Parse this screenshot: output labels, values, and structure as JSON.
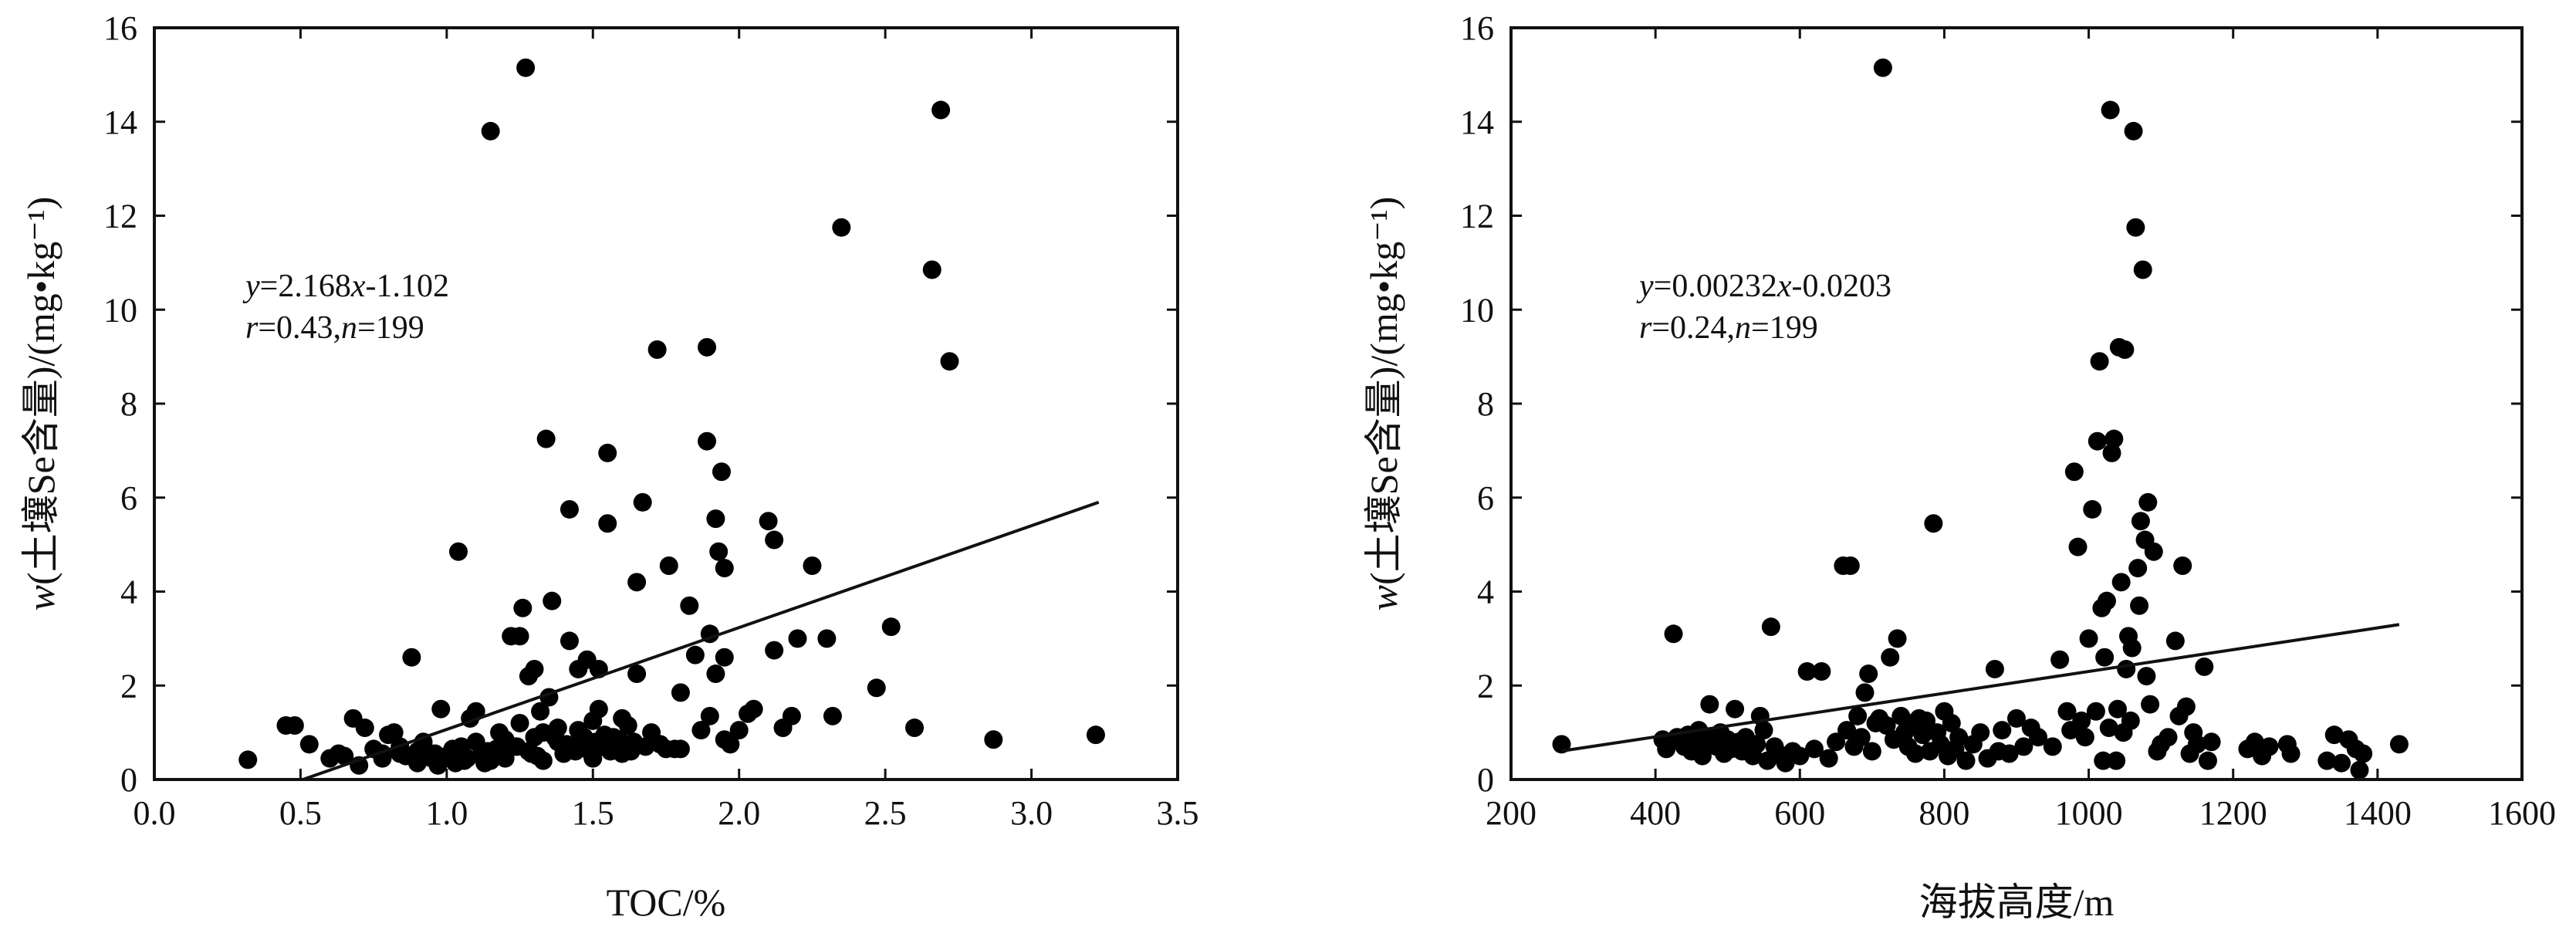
{
  "chart_data": [
    {
      "type": "scatter",
      "xlabel": "TOC/%",
      "ylabel": "w(土壤Se含量)/(mg•kg⁻¹)",
      "xlim": [
        0.0,
        3.5
      ],
      "ylim": [
        0,
        16
      ],
      "xticks": [
        "0.0",
        "0.5",
        "1.0",
        "1.5",
        "2.0",
        "2.5",
        "3.0",
        "3.5"
      ],
      "yticks": [
        "0",
        "2",
        "4",
        "6",
        "8",
        "10",
        "12",
        "14",
        "16"
      ],
      "annotation": {
        "eq": "y=2.168x-1.102",
        "stats": "r=0.43,n=199"
      },
      "trendline": {
        "slope": 2.168,
        "intercept": -1.102,
        "x_range": [
          0.51,
          3.23
        ]
      },
      "points": [
        [
          0.32,
          0.42
        ],
        [
          0.45,
          1.15
        ],
        [
          0.48,
          1.15
        ],
        [
          0.53,
          0.75
        ],
        [
          0.6,
          0.45
        ],
        [
          0.63,
          0.55
        ],
        [
          0.65,
          0.5
        ],
        [
          0.68,
          1.3
        ],
        [
          0.7,
          0.3
        ],
        [
          0.72,
          1.1
        ],
        [
          0.75,
          0.65
        ],
        [
          0.78,
          0.45
        ],
        [
          0.8,
          0.95
        ],
        [
          0.82,
          1.0
        ],
        [
          0.84,
          0.55
        ],
        [
          0.86,
          0.5
        ],
        [
          0.88,
          2.6
        ],
        [
          0.9,
          0.35
        ],
        [
          0.92,
          0.8
        ],
        [
          0.93,
          0.6
        ],
        [
          0.95,
          0.45
        ],
        [
          0.97,
          0.3
        ],
        [
          0.98,
          1.5
        ],
        [
          1.0,
          0.5
        ],
        [
          1.02,
          0.65
        ],
        [
          1.03,
          0.35
        ],
        [
          1.04,
          4.85
        ],
        [
          1.05,
          0.7
        ],
        [
          1.07,
          0.45
        ],
        [
          1.08,
          1.3
        ],
        [
          1.1,
          1.45
        ],
        [
          1.1,
          0.8
        ],
        [
          1.12,
          0.55
        ],
        [
          1.13,
          0.35
        ],
        [
          1.15,
          13.8
        ],
        [
          1.15,
          0.4
        ],
        [
          1.17,
          0.65
        ],
        [
          1.18,
          1.0
        ],
        [
          1.2,
          0.85
        ],
        [
          1.2,
          0.45
        ],
        [
          1.22,
          3.05
        ],
        [
          1.23,
          0.7
        ],
        [
          1.25,
          1.2
        ],
        [
          1.25,
          3.05
        ],
        [
          1.26,
          3.65
        ],
        [
          1.27,
          15.15
        ],
        [
          1.28,
          2.2
        ],
        [
          1.28,
          0.6
        ],
        [
          1.3,
          0.9
        ],
        [
          1.3,
          2.35
        ],
        [
          1.32,
          1.45
        ],
        [
          1.33,
          1.0
        ],
        [
          1.33,
          0.4
        ],
        [
          1.34,
          7.25
        ],
        [
          1.35,
          1.75
        ],
        [
          1.36,
          3.8
        ],
        [
          1.38,
          0.8
        ],
        [
          1.38,
          1.1
        ],
        [
          1.4,
          0.55
        ],
        [
          1.42,
          2.95
        ],
        [
          1.42,
          5.75
        ],
        [
          1.43,
          0.65
        ],
        [
          1.45,
          1.05
        ],
        [
          1.45,
          2.35
        ],
        [
          1.46,
          0.85
        ],
        [
          1.48,
          0.7
        ],
        [
          1.48,
          2.55
        ],
        [
          1.5,
          1.25
        ],
        [
          1.5,
          0.45
        ],
        [
          1.52,
          2.35
        ],
        [
          1.52,
          1.5
        ],
        [
          1.54,
          0.95
        ],
        [
          1.55,
          5.45
        ],
        [
          1.55,
          6.95
        ],
        [
          1.56,
          0.6
        ],
        [
          1.58,
          0.75
        ],
        [
          1.6,
          1.3
        ],
        [
          1.6,
          0.55
        ],
        [
          1.62,
          1.15
        ],
        [
          1.64,
          0.8
        ],
        [
          1.65,
          2.25
        ],
        [
          1.65,
          4.2
        ],
        [
          1.67,
          5.9
        ],
        [
          1.68,
          0.7
        ],
        [
          1.7,
          1.0
        ],
        [
          1.72,
          9.15
        ],
        [
          1.73,
          0.75
        ],
        [
          1.75,
          0.65
        ],
        [
          1.76,
          4.55
        ],
        [
          1.78,
          0.65
        ],
        [
          1.8,
          1.85
        ],
        [
          1.8,
          0.65
        ],
        [
          1.83,
          3.7
        ],
        [
          1.85,
          2.65
        ],
        [
          1.87,
          1.05
        ],
        [
          1.89,
          7.2
        ],
        [
          1.89,
          9.2
        ],
        [
          1.9,
          3.1
        ],
        [
          1.9,
          1.35
        ],
        [
          1.92,
          2.25
        ],
        [
          1.92,
          5.55
        ],
        [
          1.93,
          4.85
        ],
        [
          1.94,
          6.55
        ],
        [
          1.95,
          0.85
        ],
        [
          1.95,
          4.5
        ],
        [
          1.95,
          2.6
        ],
        [
          1.97,
          0.75
        ],
        [
          2.0,
          1.05
        ],
        [
          2.03,
          1.4
        ],
        [
          2.05,
          1.5
        ],
        [
          2.1,
          5.5
        ],
        [
          2.12,
          2.75
        ],
        [
          2.12,
          5.1
        ],
        [
          2.15,
          1.1
        ],
        [
          2.18,
          1.35
        ],
        [
          2.2,
          3.0
        ],
        [
          2.25,
          4.55
        ],
        [
          2.3,
          3.0
        ],
        [
          2.32,
          1.35
        ],
        [
          2.35,
          11.75
        ],
        [
          2.47,
          1.95
        ],
        [
          2.52,
          3.25
        ],
        [
          2.6,
          1.1
        ],
        [
          2.66,
          10.85
        ],
        [
          2.69,
          14.25
        ],
        [
          2.72,
          8.9
        ],
        [
          2.87,
          0.85
        ],
        [
          3.22,
          0.95
        ],
        [
          0.78,
          0.55
        ],
        [
          0.84,
          0.7
        ],
        [
          0.9,
          0.6
        ],
        [
          0.96,
          0.55
        ],
        [
          1.06,
          0.4
        ],
        [
          1.14,
          0.6
        ],
        [
          1.19,
          0.55
        ],
        [
          1.21,
          0.75
        ],
        [
          1.24,
          0.7
        ],
        [
          1.29,
          0.55
        ],
        [
          1.31,
          0.5
        ],
        [
          1.37,
          0.9
        ],
        [
          1.41,
          0.75
        ],
        [
          1.44,
          0.6
        ],
        [
          1.47,
          0.9
        ],
        [
          1.49,
          0.6
        ],
        [
          1.51,
          0.8
        ],
        [
          1.53,
          0.7
        ],
        [
          1.57,
          0.9
        ],
        [
          1.59,
          0.85
        ],
        [
          1.61,
          0.7
        ],
        [
          1.63,
          0.6
        ]
      ]
    },
    {
      "type": "scatter",
      "xlabel": "海拔高度/m",
      "ylabel": "w(土壤Se含量)/(mg•kg⁻¹)",
      "xlim": [
        200,
        1600
      ],
      "ylim": [
        0,
        16
      ],
      "xticks": [
        "200",
        "400",
        "600",
        "800",
        "1000",
        "1200",
        "1400",
        "1600"
      ],
      "yticks": [
        "0",
        "2",
        "4",
        "6",
        "8",
        "10",
        "12",
        "14",
        "16"
      ],
      "annotation": {
        "eq": "y=0.00232x-0.0203",
        "stats": "r=0.24,n=199"
      },
      "trendline": {
        "slope": 0.00232,
        "intercept": -0.0203,
        "x_range": [
          270,
          1430
        ]
      },
      "points": [
        [
          270,
          0.75
        ],
        [
          410,
          0.85
        ],
        [
          415,
          0.65
        ],
        [
          425,
          3.1
        ],
        [
          430,
          0.9
        ],
        [
          440,
          0.7
        ],
        [
          445,
          0.95
        ],
        [
          450,
          0.6
        ],
        [
          455,
          0.8
        ],
        [
          460,
          1.05
        ],
        [
          465,
          0.5
        ],
        [
          470,
          0.75
        ],
        [
          475,
          1.6
        ],
        [
          480,
          0.9
        ],
        [
          485,
          0.7
        ],
        [
          490,
          1.0
        ],
        [
          495,
          0.55
        ],
        [
          500,
          0.85
        ],
        [
          505,
          0.65
        ],
        [
          510,
          1.5
        ],
        [
          515,
          0.8
        ],
        [
          520,
          0.6
        ],
        [
          525,
          0.9
        ],
        [
          535,
          0.5
        ],
        [
          540,
          0.75
        ],
        [
          545,
          1.35
        ],
        [
          550,
          1.05
        ],
        [
          555,
          0.4
        ],
        [
          560,
          3.25
        ],
        [
          565,
          0.7
        ],
        [
          570,
          0.55
        ],
        [
          580,
          0.35
        ],
        [
          590,
          0.6
        ],
        [
          600,
          0.5
        ],
        [
          610,
          2.3
        ],
        [
          620,
          0.65
        ],
        [
          630,
          2.3
        ],
        [
          640,
          0.45
        ],
        [
          650,
          0.8
        ],
        [
          660,
          4.55
        ],
        [
          665,
          1.05
        ],
        [
          670,
          4.55
        ],
        [
          675,
          0.7
        ],
        [
          680,
          1.35
        ],
        [
          685,
          0.9
        ],
        [
          690,
          1.85
        ],
        [
          695,
          2.25
        ],
        [
          700,
          0.6
        ],
        [
          705,
          1.2
        ],
        [
          710,
          1.3
        ],
        [
          715,
          15.15
        ],
        [
          720,
          1.15
        ],
        [
          725,
          2.6
        ],
        [
          730,
          0.85
        ],
        [
          735,
          3.0
        ],
        [
          740,
          1.35
        ],
        [
          745,
          1.0
        ],
        [
          750,
          0.7
        ],
        [
          755,
          1.2
        ],
        [
          760,
          0.55
        ],
        [
          765,
          1.3
        ],
        [
          770,
          0.95
        ],
        [
          775,
          1.25
        ],
        [
          780,
          0.6
        ],
        [
          785,
          5.45
        ],
        [
          790,
          1.0
        ],
        [
          795,
          0.75
        ],
        [
          800,
          1.45
        ],
        [
          805,
          0.5
        ],
        [
          810,
          1.2
        ],
        [
          815,
          0.65
        ],
        [
          820,
          0.9
        ],
        [
          830,
          0.4
        ],
        [
          840,
          0.75
        ],
        [
          850,
          1.0
        ],
        [
          860,
          0.45
        ],
        [
          870,
          2.35
        ],
        [
          875,
          0.6
        ],
        [
          880,
          1.05
        ],
        [
          890,
          0.55
        ],
        [
          900,
          1.3
        ],
        [
          910,
          0.7
        ],
        [
          920,
          1.1
        ],
        [
          930,
          0.9
        ],
        [
          950,
          0.7
        ],
        [
          960,
          2.55
        ],
        [
          970,
          1.45
        ],
        [
          975,
          1.05
        ],
        [
          980,
          6.55
        ],
        [
          985,
          4.95
        ],
        [
          990,
          1.25
        ],
        [
          995,
          0.9
        ],
        [
          1000,
          3.0
        ],
        [
          1005,
          5.75
        ],
        [
          1010,
          1.45
        ],
        [
          1012,
          7.2
        ],
        [
          1015,
          8.9
        ],
        [
          1018,
          3.65
        ],
        [
          1020,
          0.4
        ],
        [
          1022,
          2.6
        ],
        [
          1025,
          3.8
        ],
        [
          1028,
          1.1
        ],
        [
          1030,
          14.25
        ],
        [
          1032,
          6.95
        ],
        [
          1035,
          7.25
        ],
        [
          1038,
          0.4
        ],
        [
          1040,
          1.5
        ],
        [
          1042,
          9.2
        ],
        [
          1045,
          4.2
        ],
        [
          1048,
          1.0
        ],
        [
          1050,
          9.15
        ],
        [
          1052,
          2.35
        ],
        [
          1055,
          3.05
        ],
        [
          1058,
          1.25
        ],
        [
          1060,
          2.8
        ],
        [
          1062,
          13.8
        ],
        [
          1065,
          11.75
        ],
        [
          1068,
          4.5
        ],
        [
          1070,
          3.7
        ],
        [
          1072,
          5.5
        ],
        [
          1075,
          10.85
        ],
        [
          1078,
          5.1
        ],
        [
          1080,
          2.2
        ],
        [
          1082,
          5.9
        ],
        [
          1085,
          1.6
        ],
        [
          1090,
          4.85
        ],
        [
          1095,
          0.6
        ],
        [
          1100,
          0.75
        ],
        [
          1110,
          0.9
        ],
        [
          1120,
          2.95
        ],
        [
          1125,
          1.35
        ],
        [
          1130,
          4.55
        ],
        [
          1135,
          1.55
        ],
        [
          1140,
          0.55
        ],
        [
          1145,
          1.0
        ],
        [
          1150,
          0.75
        ],
        [
          1160,
          2.4
        ],
        [
          1165,
          0.4
        ],
        [
          1170,
          0.8
        ],
        [
          1220,
          0.65
        ],
        [
          1230,
          0.8
        ],
        [
          1240,
          0.5
        ],
        [
          1250,
          0.7
        ],
        [
          1275,
          0.75
        ],
        [
          1280,
          0.55
        ],
        [
          1330,
          0.4
        ],
        [
          1340,
          0.95
        ],
        [
          1350,
          0.35
        ],
        [
          1360,
          0.85
        ],
        [
          1370,
          0.65
        ],
        [
          1375,
          0.2
        ],
        [
          1380,
          0.55
        ],
        [
          1430,
          0.75
        ]
      ]
    }
  ]
}
